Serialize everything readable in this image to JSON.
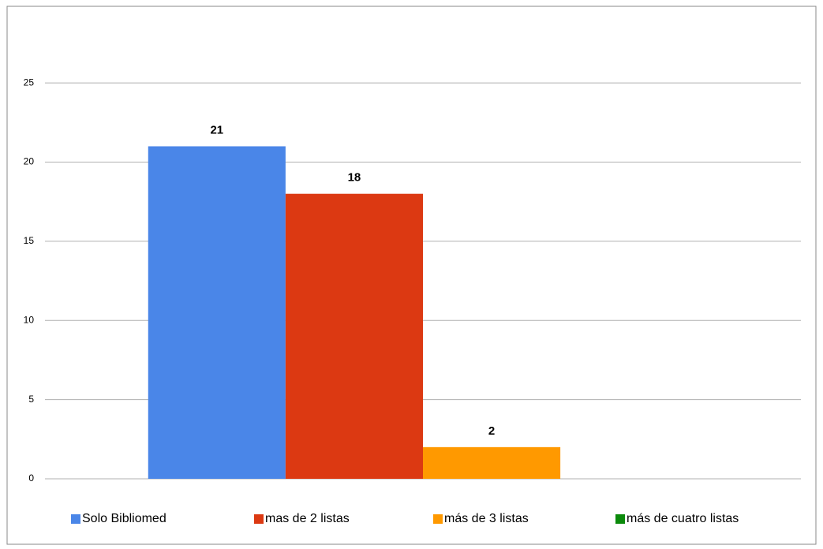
{
  "chart_data": {
    "type": "bar",
    "categories": [
      null
    ],
    "series": [
      {
        "name": "Solo Bibliomed",
        "color": "#4a86e8",
        "values": [
          21
        ]
      },
      {
        "name": "mas de 2 listas",
        "color": "#dc3912",
        "values": [
          18
        ]
      },
      {
        "name": "más de 3 listas",
        "color": "#ff9900",
        "values": [
          2
        ]
      },
      {
        "name": "más de cuatro listas",
        "color": "#0b8a0b",
        "values": [
          null
        ]
      }
    ],
    "ylim": [
      0,
      27.5
    ],
    "yticks": [
      0,
      5,
      10,
      15,
      20,
      25
    ],
    "grid": true,
    "legend": "bottom"
  }
}
